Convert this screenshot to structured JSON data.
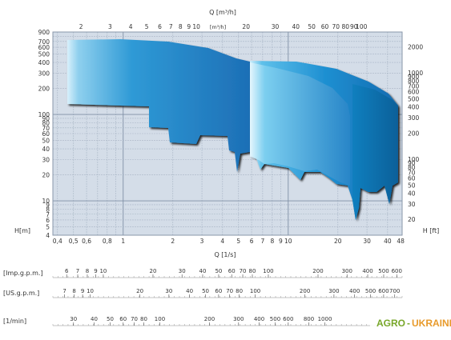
{
  "chart_data": {
    "type": "area",
    "title": "",
    "top_axis": {
      "label": "Q [m³/h]",
      "ticks": [
        "2",
        "3",
        "4",
        "5",
        "6",
        "7",
        "8",
        "9",
        "10",
        "20",
        "30",
        "40",
        "50",
        "60",
        "70",
        "80",
        "90",
        "100"
      ],
      "inner_label": "[m³/h]"
    },
    "bottom_axis": {
      "label": "Q [1/s]",
      "ticks": [
        "0,4",
        "0,5",
        "0,6",
        "0,8",
        "1",
        "2",
        "3",
        "4",
        "5",
        "6",
        "7",
        "8",
        "9",
        "10",
        "20",
        "30",
        "40",
        "48"
      ]
    },
    "left_axis": {
      "label": "H[m]",
      "scale": "log",
      "ylim": [
        4,
        900
      ],
      "ticks": [
        "900",
        "700",
        "600",
        "500",
        "400",
        "300",
        "200",
        "100",
        "90",
        "80",
        "70",
        "60",
        "50",
        "40",
        "30",
        "20",
        "10",
        "9",
        "8",
        "7",
        "6",
        "5",
        "4"
      ]
    },
    "right_axis": {
      "label": "H [ft]",
      "ticks": [
        "2000",
        "1000",
        "900",
        "800",
        "700",
        "600",
        "500",
        "400",
        "300",
        "200",
        "100",
        "90",
        "80",
        "70",
        "60",
        "50",
        "40",
        "30",
        "20"
      ]
    },
    "flow_scales": [
      {
        "label": "[Imp.g.p.m.]",
        "ticks": [
          "6",
          "7",
          "8",
          "9",
          "10",
          "20",
          "30",
          "40",
          "50",
          "60",
          "70",
          "80",
          "100",
          "200",
          "300",
          "400",
          "500",
          "600"
        ]
      },
      {
        "label": "[US.g.p.m.]",
        "ticks": [
          "7",
          "8",
          "9",
          "10",
          "20",
          "30",
          "40",
          "50",
          "60",
          "70",
          "80",
          "100",
          "200",
          "300",
          "400",
          "500",
          "600",
          "700"
        ]
      },
      {
        "label": "[1/min]",
        "ticks": [
          "30",
          "40",
          "50",
          "60",
          "70",
          "80",
          "100",
          "200",
          "300",
          "400",
          "500",
          "600",
          "800",
          "1000"
        ]
      }
    ],
    "series": [
      {
        "flow_m3h": [
          2,
          70
        ],
        "head_m": [
          20,
          800
        ]
      },
      {
        "flow_m3h": [
          19,
          170
        ],
        "head_m": [
          5,
          450
        ]
      }
    ]
  },
  "watermark": {
    "prefix": "AGRO",
    "dash": "-",
    "suffix": "UKRAINE"
  }
}
